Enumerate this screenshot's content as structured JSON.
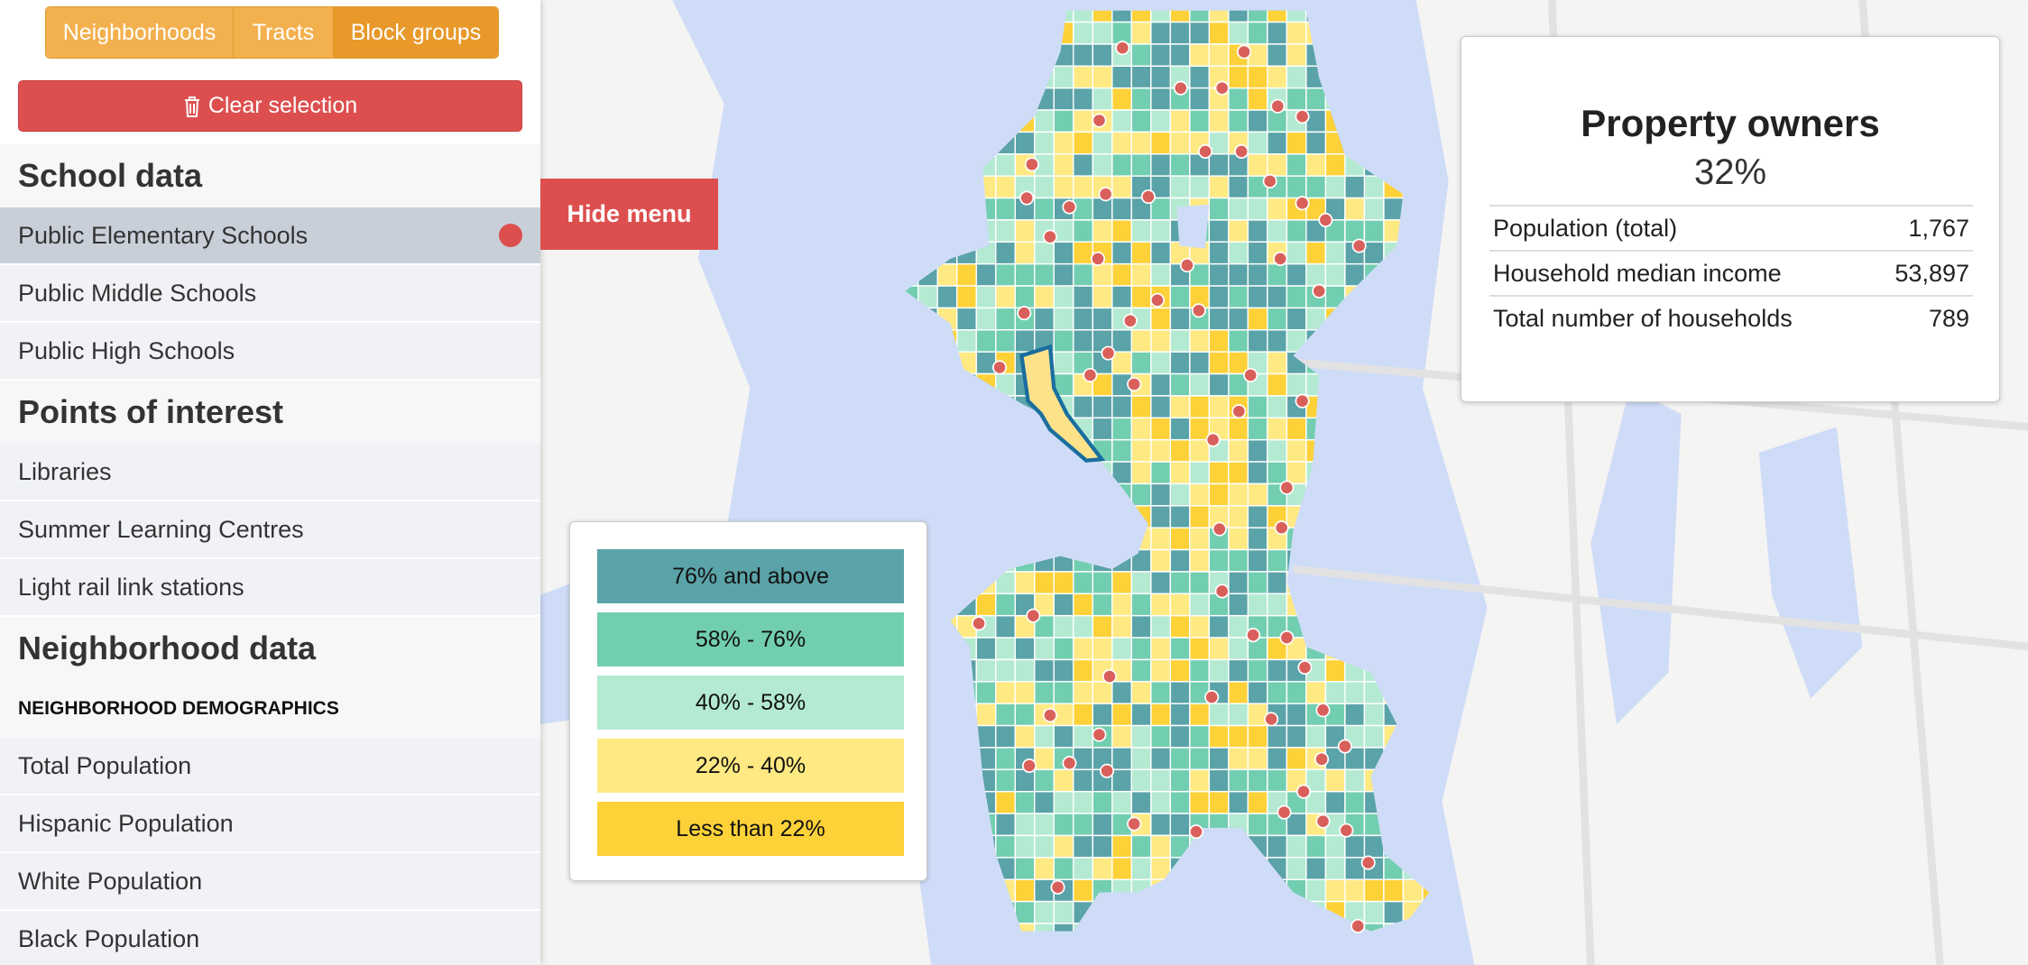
{
  "tabs": [
    "Neighborhoods",
    "Tracts",
    "Block groups"
  ],
  "clear_button": "Clear selection",
  "sections": [
    {
      "title": "School data",
      "items": [
        "Public Elementary Schools",
        "Public Middle Schools",
        "Public High Schools"
      ]
    },
    {
      "title": "Points of interest",
      "items": [
        "Libraries",
        "Summer Learning Centres",
        "Light rail link stations"
      ]
    },
    {
      "title": "Neighborhood data",
      "subtitle": "NEIGHBORHOOD DEMOGRAPHICS",
      "items": [
        "Total Population",
        "Hispanic Population",
        "White Population",
        "Black Population"
      ]
    }
  ],
  "hide_menu": "Hide menu",
  "legend": [
    "76% and above",
    "58% - 76%",
    "40% - 58%",
    "22% - 40%",
    "Less than 22%"
  ],
  "info": {
    "title": "Property owners",
    "value": "32%",
    "rows": [
      [
        "Population (total)",
        "1,767"
      ],
      [
        "Household median income",
        "53,897"
      ],
      [
        "Total number of households",
        "789"
      ]
    ]
  }
}
